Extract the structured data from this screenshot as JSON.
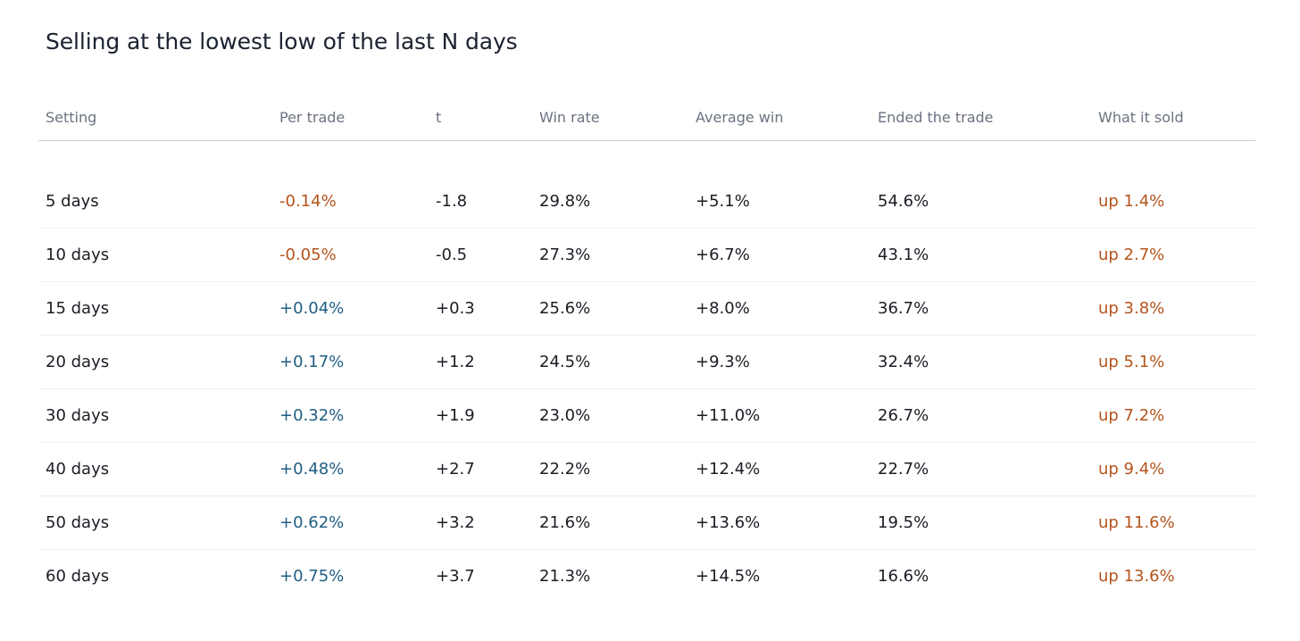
{
  "title": "Selling at the lowest low of the last N days",
  "colors": {
    "negative": "#b5541c",
    "positive": "#1f5e83",
    "sold": "#b5541c",
    "text": "#1a1d24",
    "header_text": "#6a7280"
  },
  "table": {
    "headers": [
      "Setting",
      "Per trade",
      "t",
      "Win rate",
      "Average win",
      "Ended the trade",
      "What it sold"
    ],
    "rows": [
      {
        "setting": "5 days",
        "per_trade": "-0.14%",
        "per_trade_sign": "negative",
        "t": "-1.8",
        "win_rate": "29.8%",
        "avg_win": "+5.1%",
        "ended": "54.6%",
        "sold": "up 1.4%"
      },
      {
        "setting": "10 days",
        "per_trade": "-0.05%",
        "per_trade_sign": "negative",
        "t": "-0.5",
        "win_rate": "27.3%",
        "avg_win": "+6.7%",
        "ended": "43.1%",
        "sold": "up 2.7%"
      },
      {
        "setting": "15 days",
        "per_trade": "+0.04%",
        "per_trade_sign": "positive",
        "t": "+0.3",
        "win_rate": "25.6%",
        "avg_win": "+8.0%",
        "ended": "36.7%",
        "sold": "up 3.8%"
      },
      {
        "setting": "20 days",
        "per_trade": "+0.17%",
        "per_trade_sign": "positive",
        "t": "+1.2",
        "win_rate": "24.5%",
        "avg_win": "+9.3%",
        "ended": "32.4%",
        "sold": "up 5.1%"
      },
      {
        "setting": "30 days",
        "per_trade": "+0.32%",
        "per_trade_sign": "positive",
        "t": "+1.9",
        "win_rate": "23.0%",
        "avg_win": "+11.0%",
        "ended": "26.7%",
        "sold": "up 7.2%"
      },
      {
        "setting": "40 days",
        "per_trade": "+0.48%",
        "per_trade_sign": "positive",
        "t": "+2.7",
        "win_rate": "22.2%",
        "avg_win": "+12.4%",
        "ended": "22.7%",
        "sold": "up 9.4%"
      },
      {
        "setting": "50 days",
        "per_trade": "+0.62%",
        "per_trade_sign": "positive",
        "t": "+3.2",
        "win_rate": "21.6%",
        "avg_win": "+13.6%",
        "ended": "19.5%",
        "sold": "up 11.6%"
      },
      {
        "setting": "60 days",
        "per_trade": "+0.75%",
        "per_trade_sign": "positive",
        "t": "+3.7",
        "win_rate": "21.3%",
        "avg_win": "+14.5%",
        "ended": "16.6%",
        "sold": "up 13.6%"
      }
    ]
  }
}
